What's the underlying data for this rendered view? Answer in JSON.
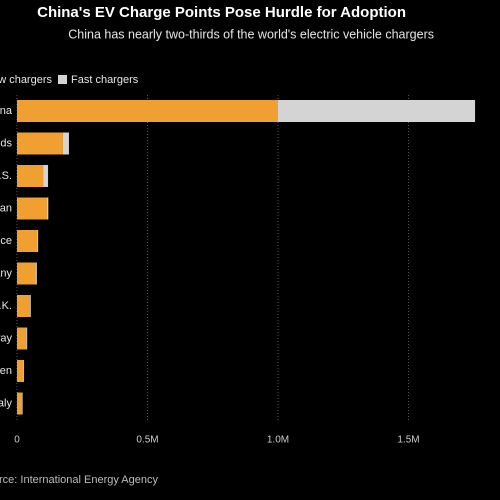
{
  "chart_data": {
    "type": "stacked-barh",
    "title": "China's EV Charge Points Pose Hurdle for Adoption",
    "subtitle": "China has nearly two-thirds of the world's electric vehicle chargers",
    "categories": [
      "China",
      "Netherlands",
      "U.S.",
      "Japan",
      "France",
      "Germany",
      "U.K.",
      "Norway",
      "Sweden",
      "Italy"
    ],
    "series": [
      {
        "name": "Slow chargers",
        "color": "#f0a030",
        "values": [
          1.0,
          0.176,
          0.1,
          0.115,
          0.077,
          0.07,
          0.05,
          0.035,
          0.025,
          0.02
        ]
      },
      {
        "name": "Fast chargers",
        "color": "#d4d4d4",
        "values": [
          0.755,
          0.023,
          0.019,
          0.005,
          0.004,
          0.006,
          0.003,
          0.004,
          0.002,
          0.002
        ]
      }
    ],
    "xlim": [
      0,
      1.8
    ],
    "xticks": [
      0,
      {
        "value": 0.5,
        "label": "0.5M"
      },
      {
        "value": 1.0,
        "label": "1.0M"
      },
      {
        "value": 1.5,
        "label": "1.5M"
      }
    ],
    "grid": true,
    "source": "Source: International Energy Agency"
  }
}
